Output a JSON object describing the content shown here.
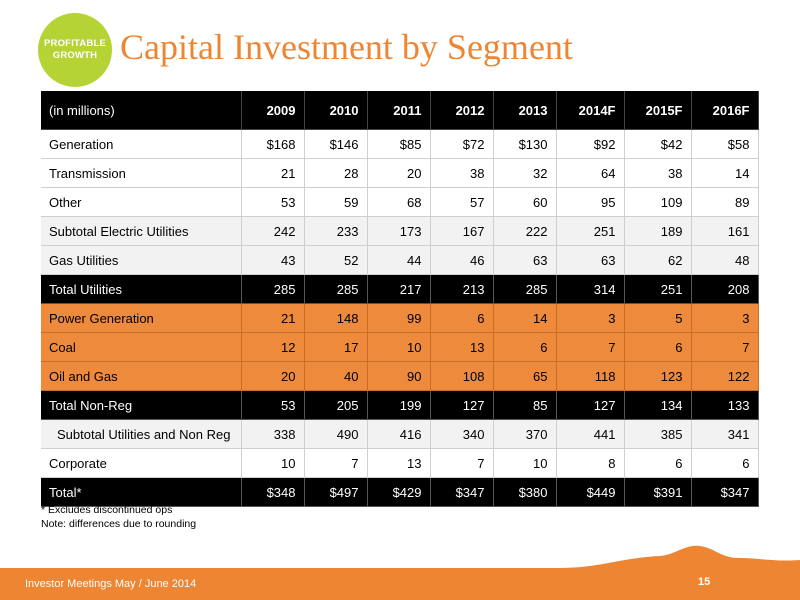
{
  "badge": {
    "text": "PROFITABLE\nGROWTH"
  },
  "title": "Capital Investment by Segment",
  "table": {
    "header": [
      "(in millions)",
      "2009",
      "2010",
      "2011",
      "2012",
      "2013",
      "2014F",
      "2015F",
      "2016F"
    ],
    "rows": [
      {
        "style": "white",
        "cells": [
          "Generation",
          "$168",
          "$146",
          "$85",
          "$72",
          "$130",
          "$92",
          "$42",
          "$58"
        ]
      },
      {
        "style": "white",
        "cells": [
          "Transmission",
          "21",
          "28",
          "20",
          "38",
          "32",
          "64",
          "38",
          "14"
        ]
      },
      {
        "style": "white",
        "cells": [
          "Other",
          "53",
          "59",
          "68",
          "57",
          "60",
          "95",
          "109",
          "89"
        ]
      },
      {
        "style": "gray",
        "cells": [
          "Subtotal Electric Utilities",
          "242",
          "233",
          "173",
          "167",
          "222",
          "251",
          "189",
          "161"
        ]
      },
      {
        "style": "gray",
        "cells": [
          "Gas Utilities",
          "43",
          "52",
          "44",
          "46",
          "63",
          "63",
          "62",
          "48"
        ]
      },
      {
        "style": "black",
        "cells": [
          "Total Utilities",
          "285",
          "285",
          "217",
          "213",
          "285",
          "314",
          "251",
          "208"
        ]
      },
      {
        "style": "orange",
        "cells": [
          "Power Generation",
          "21",
          "148",
          "99",
          "6",
          "14",
          "3",
          "5",
          "3"
        ]
      },
      {
        "style": "orange",
        "cells": [
          "Coal",
          "12",
          "17",
          "10",
          "13",
          "6",
          "7",
          "6",
          "7"
        ]
      },
      {
        "style": "orange",
        "cells": [
          "Oil and Gas",
          "20",
          "40",
          "90",
          "108",
          "65",
          "118",
          "123",
          "122"
        ]
      },
      {
        "style": "black",
        "cells": [
          "Total Non-Reg",
          "53",
          "205",
          "199",
          "127",
          "85",
          "127",
          "134",
          "133"
        ]
      },
      {
        "style": "gray indent",
        "cells": [
          "Subtotal Utilities and Non Reg",
          "338",
          "490",
          "416",
          "340",
          "370",
          "441",
          "385",
          "341"
        ]
      },
      {
        "style": "white",
        "cells": [
          "Corporate",
          "10",
          "7",
          "13",
          "7",
          "10",
          "8",
          "6",
          "6"
        ]
      },
      {
        "style": "black",
        "cells": [
          "Total*",
          "$348",
          "$497",
          "$429",
          "$347",
          "$380",
          "$449",
          "$391",
          "$347"
        ]
      }
    ]
  },
  "footnotes": [
    "*  Excludes discontinued ops",
    "Note: differences due to rounding"
  ],
  "footer": {
    "left": "Investor Meetings May / June 2014",
    "page": "15"
  },
  "colors": {
    "accent": "#ee8532",
    "badge": "#b5d334",
    "orange_row": "#ee8a3c"
  }
}
